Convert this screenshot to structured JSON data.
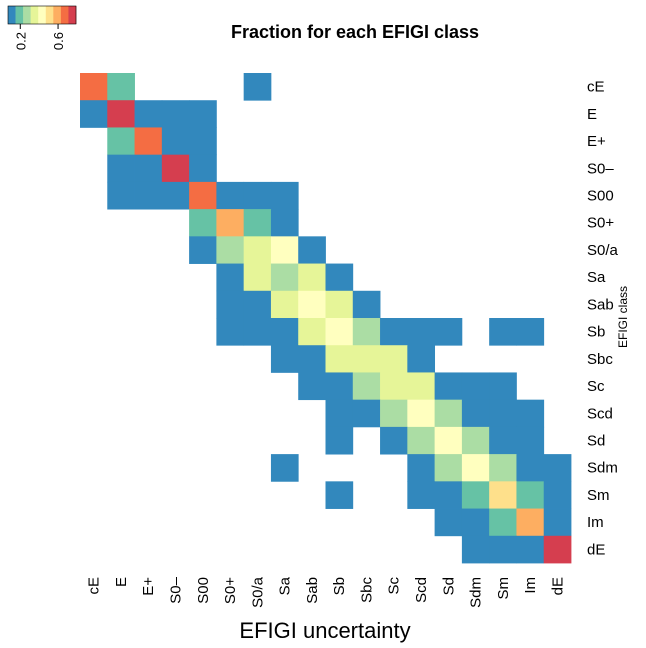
{
  "chart_data": {
    "type": "heatmap",
    "title": "Fraction for each EFIGI class",
    "x_label": "EFIGI uncertainty",
    "y_label": "EFIGI class",
    "categories": [
      "cE",
      "E",
      "E+",
      "S0–",
      "S00",
      "S0+",
      "S0/a",
      "Sa",
      "Sab",
      "Sb",
      "Sbc",
      "Sc",
      "Scd",
      "Sd",
      "Sdm",
      "Sm",
      "Im",
      "dE"
    ],
    "colors": [
      "#3288bd",
      "#66c2a5",
      "#abdda4",
      "#e6f598",
      "#ffffbf",
      "#fee08b",
      "#fdae61",
      "#f46d43",
      "#d53e4f"
    ],
    "zlim": [
      0.07,
      0.79
    ],
    "zticks": [
      0.2,
      0.6
    ],
    "z": [
      [
        0.67,
        0.19,
        null,
        null,
        null,
        null,
        0.11,
        null,
        null,
        null,
        null,
        null,
        null,
        null,
        null,
        null,
        null,
        null
      ],
      [
        0.11,
        0.75,
        0.11,
        0.11,
        0.11,
        null,
        null,
        null,
        null,
        null,
        null,
        null,
        null,
        null,
        null,
        null,
        null,
        null
      ],
      [
        null,
        0.19,
        0.67,
        0.11,
        0.11,
        null,
        null,
        null,
        null,
        null,
        null,
        null,
        null,
        null,
        null,
        null,
        null,
        null
      ],
      [
        null,
        0.11,
        0.11,
        0.75,
        0.11,
        null,
        null,
        null,
        null,
        null,
        null,
        null,
        null,
        null,
        null,
        null,
        null,
        null
      ],
      [
        null,
        0.11,
        0.11,
        0.11,
        0.67,
        0.11,
        0.11,
        0.11,
        null,
        null,
        null,
        null,
        null,
        null,
        null,
        null,
        null,
        null
      ],
      [
        null,
        null,
        null,
        null,
        0.19,
        0.59,
        0.19,
        0.11,
        null,
        null,
        null,
        null,
        null,
        null,
        null,
        null,
        null,
        null
      ],
      [
        null,
        null,
        null,
        null,
        0.11,
        0.27,
        0.35,
        0.43,
        0.11,
        null,
        null,
        null,
        null,
        null,
        null,
        null,
        null,
        null
      ],
      [
        null,
        null,
        null,
        null,
        null,
        0.11,
        0.35,
        0.27,
        0.35,
        0.11,
        null,
        null,
        null,
        null,
        null,
        null,
        null,
        null
      ],
      [
        null,
        null,
        null,
        null,
        null,
        0.11,
        0.11,
        0.35,
        0.43,
        0.35,
        0.11,
        null,
        null,
        null,
        null,
        null,
        null,
        null
      ],
      [
        null,
        null,
        null,
        null,
        null,
        0.11,
        0.11,
        0.11,
        0.35,
        0.43,
        0.27,
        0.11,
        0.11,
        0.11,
        null,
        0.11,
        0.11,
        null
      ],
      [
        null,
        null,
        null,
        null,
        null,
        null,
        null,
        0.11,
        0.11,
        0.35,
        0.35,
        0.35,
        0.11,
        null,
        null,
        null,
        null,
        null
      ],
      [
        null,
        null,
        null,
        null,
        null,
        null,
        null,
        null,
        0.11,
        0.11,
        0.27,
        0.35,
        0.35,
        0.11,
        0.11,
        0.11,
        null,
        null
      ],
      [
        null,
        null,
        null,
        null,
        null,
        null,
        null,
        null,
        null,
        0.11,
        0.11,
        0.27,
        0.43,
        0.27,
        0.11,
        0.11,
        0.11,
        null
      ],
      [
        null,
        null,
        null,
        null,
        null,
        null,
        null,
        null,
        null,
        0.11,
        null,
        0.11,
        0.27,
        0.43,
        0.27,
        0.11,
        0.11,
        null
      ],
      [
        null,
        null,
        null,
        null,
        null,
        null,
        null,
        0.11,
        null,
        null,
        null,
        null,
        0.11,
        0.27,
        0.43,
        0.27,
        0.11,
        0.11
      ],
      [
        null,
        null,
        null,
        null,
        null,
        null,
        null,
        null,
        null,
        0.11,
        null,
        null,
        0.11,
        0.11,
        0.19,
        0.51,
        0.19,
        0.11
      ],
      [
        null,
        null,
        null,
        null,
        null,
        null,
        null,
        null,
        null,
        null,
        null,
        null,
        null,
        0.11,
        0.11,
        0.19,
        0.59,
        0.11
      ],
      [
        null,
        null,
        null,
        null,
        null,
        null,
        null,
        null,
        null,
        null,
        null,
        null,
        null,
        null,
        0.11,
        0.11,
        0.11,
        0.75
      ]
    ]
  }
}
